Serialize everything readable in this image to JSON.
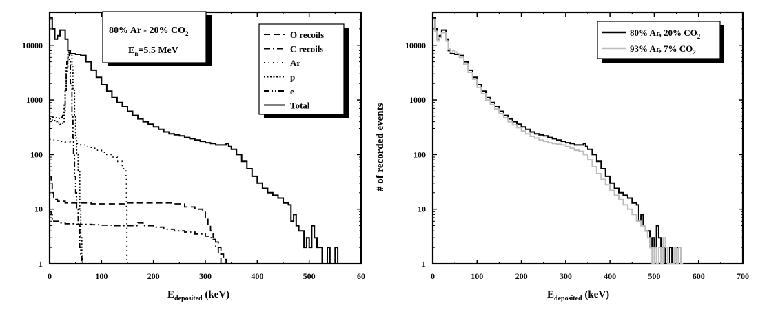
{
  "chart_data": [
    {
      "type": "line",
      "panel": "left",
      "xscale": "linear",
      "yscale": "log",
      "xlim": [
        0,
        600
      ],
      "ylim": [
        1,
        40000
      ],
      "xticks": [
        "0",
        "100",
        "200",
        "300",
        "400",
        "500",
        "60"
      ],
      "yticks": [
        "1",
        "10",
        "100",
        "1000",
        "10000"
      ],
      "xlabel": {
        "main": "E",
        "sub": "deposited",
        "unit": " (keV)"
      },
      "ylabel": "",
      "annotation": {
        "line1_main": "80% Ar - 20% CO",
        "line1_sub": "2",
        "line2_main": "E",
        "line2_sub": "n",
        "line2_rest": "=5.5 MeV"
      },
      "series": [
        {
          "name": "O recoils",
          "style": "dashed",
          "x": [
            0,
            3,
            5,
            8,
            10,
            15,
            20,
            30,
            40,
            60,
            80,
            100,
            150,
            200,
            220,
            240,
            260,
            280,
            295,
            300,
            305,
            310,
            315,
            320,
            325,
            330,
            335,
            340
          ],
          "y": [
            40,
            30,
            20,
            16,
            15,
            14,
            14,
            13,
            13,
            13,
            12.5,
            12.5,
            13,
            13,
            13,
            12.5,
            11,
            10,
            9,
            7,
            5,
            4,
            3,
            2.5,
            2,
            1.5,
            1.2,
            1
          ]
        },
        {
          "name": "C recoils",
          "style": "dashdot",
          "x": [
            0,
            3,
            5,
            8,
            10,
            20,
            30,
            50,
            80,
            100,
            120,
            150,
            160,
            170,
            180,
            200,
            220,
            240,
            260,
            280,
            300,
            310,
            315,
            320,
            325,
            330
          ],
          "y": [
            9,
            8,
            6.5,
            6,
            6,
            5.6,
            5.4,
            5.3,
            5.2,
            5.1,
            5,
            5,
            5,
            5.6,
            5,
            4.7,
            4.3,
            4,
            3.8,
            3.5,
            3.2,
            3,
            2.8,
            2,
            1.5,
            1
          ]
        },
        {
          "name": "Ar",
          "style": "dotted",
          "x": [
            0,
            5,
            10,
            20,
            30,
            40,
            50,
            60,
            70,
            80,
            90,
            100,
            110,
            120,
            130,
            140,
            145,
            147,
            148,
            149
          ],
          "y": [
            190,
            185,
            180,
            175,
            170,
            165,
            160,
            150,
            140,
            130,
            120,
            110,
            100,
            90,
            75,
            55,
            50,
            40,
            10,
            1
          ]
        },
        {
          "name": "p",
          "style": "densedot",
          "x": [
            0,
            5,
            10,
            15,
            20,
            25,
            28,
            30,
            32,
            35,
            38,
            40,
            43,
            45,
            48,
            50,
            52,
            55,
            58,
            60,
            62,
            63
          ],
          "y": [
            450,
            420,
            400,
            380,
            360,
            400,
            600,
            1500,
            4000,
            6000,
            7000,
            6500,
            4000,
            1500,
            500,
            200,
            100,
            50,
            10,
            3,
            1.5,
            1
          ]
        },
        {
          "name": "e",
          "style": "dashdotdot",
          "x": [
            0,
            5,
            10,
            15,
            20,
            25,
            28,
            30,
            32,
            33,
            35,
            38,
            40,
            43,
            45,
            46,
            48,
            50,
            52,
            55,
            58,
            60,
            62
          ],
          "y": [
            500,
            480,
            470,
            460,
            480,
            520,
            800,
            1500,
            3000,
            5000,
            7500,
            5000,
            2000,
            500,
            200,
            100,
            40,
            20,
            10,
            5,
            2,
            1.5,
            1
          ]
        },
        {
          "name": "Total",
          "style": "solid",
          "x": [
            0,
            5,
            10,
            15,
            20,
            25,
            30,
            35,
            40,
            45,
            50,
            55,
            60,
            70,
            80,
            90,
            100,
            110,
            120,
            130,
            140,
            150,
            160,
            170,
            180,
            190,
            200,
            210,
            220,
            230,
            240,
            250,
            260,
            270,
            280,
            290,
            300,
            310,
            320,
            330,
            340,
            345,
            350,
            360,
            370,
            380,
            390,
            400,
            410,
            420,
            430,
            440,
            450,
            460,
            465,
            470,
            475,
            480,
            485,
            490,
            495,
            500,
            505,
            510,
            515,
            520,
            525,
            530,
            535,
            540,
            545,
            550,
            555,
            560
          ],
          "y": [
            32000,
            20000,
            13000,
            15000,
            19000,
            19000,
            13000,
            8000,
            7000,
            7000,
            6800,
            6800,
            6500,
            5000,
            3500,
            2600,
            1900,
            1450,
            1100,
            900,
            750,
            620,
            520,
            450,
            400,
            360,
            320,
            290,
            260,
            240,
            230,
            220,
            205,
            195,
            185,
            175,
            165,
            160,
            150,
            150,
            160,
            140,
            125,
            100,
            75,
            55,
            40,
            30,
            24,
            20,
            18,
            16,
            13,
            12,
            6,
            8,
            5,
            4,
            4,
            2,
            3,
            2,
            5,
            3,
            2,
            2,
            1,
            1,
            2,
            1,
            1,
            2,
            1,
            1
          ]
        }
      ],
      "legend": [
        "O recoils",
        "C recoils",
        "Ar",
        "p",
        "e",
        "Total"
      ]
    },
    {
      "type": "line",
      "panel": "right",
      "xscale": "linear",
      "yscale": "log",
      "xlim": [
        0,
        700
      ],
      "ylim": [
        1,
        40000
      ],
      "xticks": [
        "0",
        "100",
        "200",
        "300",
        "400",
        "500",
        "600",
        "700"
      ],
      "yticks": [
        "1",
        "10",
        "100",
        "1000",
        "10000"
      ],
      "xlabel": {
        "main": "E",
        "sub": "deposited",
        "unit": " (keV)"
      },
      "ylabel": "# of recorded events",
      "series": [
        {
          "name": "80% Ar, 20% CO2",
          "label_main": "80% Ar, 20% CO",
          "label_sub": "2",
          "color": "#000000",
          "x": [
            0,
            5,
            10,
            15,
            20,
            25,
            30,
            35,
            40,
            45,
            50,
            55,
            60,
            70,
            80,
            90,
            100,
            110,
            120,
            130,
            140,
            150,
            160,
            170,
            180,
            190,
            200,
            210,
            220,
            230,
            240,
            250,
            260,
            270,
            280,
            290,
            300,
            310,
            320,
            330,
            340,
            345,
            350,
            360,
            370,
            380,
            390,
            400,
            410,
            420,
            430,
            440,
            450,
            460,
            465,
            470,
            475,
            480,
            485,
            490,
            495,
            500,
            505,
            510,
            515,
            520,
            525,
            530,
            535,
            540,
            545,
            550,
            555,
            560
          ],
          "y": [
            32000,
            20000,
            13000,
            15000,
            19000,
            19000,
            13000,
            8000,
            7000,
            7000,
            6800,
            6800,
            6500,
            5000,
            3500,
            2600,
            1900,
            1450,
            1100,
            900,
            750,
            620,
            520,
            450,
            400,
            360,
            320,
            290,
            260,
            240,
            230,
            220,
            205,
            195,
            185,
            175,
            165,
            160,
            150,
            150,
            160,
            140,
            125,
            100,
            75,
            55,
            40,
            30,
            24,
            20,
            18,
            16,
            13,
            12,
            6,
            8,
            5,
            4,
            4,
            2,
            3,
            2,
            5,
            3,
            2,
            2,
            1,
            1,
            2,
            1,
            1,
            2,
            1,
            1
          ]
        },
        {
          "name": "93% Ar, 7% CO2",
          "label_main": "93% Ar, 7% CO",
          "label_sub": "2",
          "color": "#bdbdbd",
          "x": [
            0,
            5,
            10,
            15,
            20,
            25,
            30,
            35,
            40,
            45,
            50,
            55,
            60,
            70,
            80,
            90,
            100,
            110,
            120,
            130,
            140,
            150,
            160,
            170,
            180,
            190,
            200,
            210,
            220,
            230,
            240,
            250,
            260,
            270,
            280,
            290,
            300,
            310,
            320,
            330,
            340,
            350,
            360,
            370,
            380,
            390,
            400,
            410,
            420,
            430,
            440,
            450,
            460,
            470,
            480,
            485,
            490,
            495,
            500,
            505,
            510,
            515,
            520,
            525,
            530,
            540,
            545,
            550,
            555,
            560,
            565
          ],
          "y": [
            30000,
            18000,
            12000,
            14000,
            17000,
            17000,
            12000,
            8500,
            7500,
            8000,
            7500,
            7000,
            6000,
            4500,
            3200,
            2400,
            1700,
            1300,
            1000,
            820,
            680,
            560,
            470,
            400,
            350,
            310,
            270,
            240,
            215,
            200,
            185,
            175,
            165,
            160,
            155,
            150,
            140,
            130,
            120,
            115,
            100,
            80,
            60,
            45,
            35,
            28,
            22,
            18,
            15,
            12,
            10,
            8,
            6,
            5,
            4,
            3,
            2,
            1,
            2,
            1,
            2,
            1,
            3,
            2,
            1,
            1,
            2,
            1,
            2,
            1,
            1
          ]
        }
      ],
      "legend": [
        "80% Ar, 20% CO2",
        "93% Ar, 7% CO2"
      ]
    }
  ]
}
